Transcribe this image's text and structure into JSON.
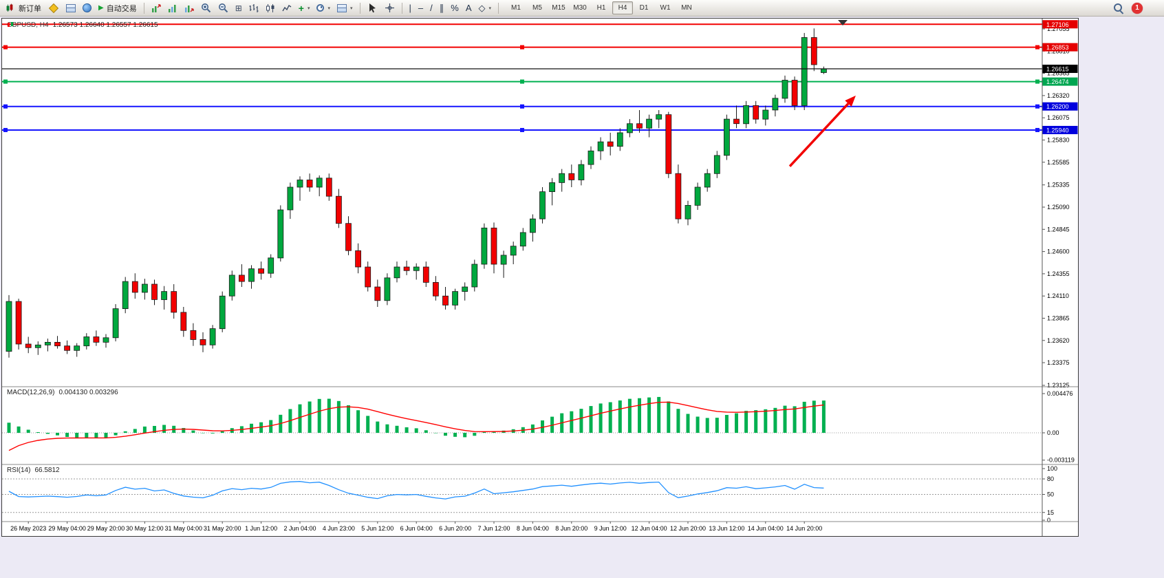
{
  "toolbar": {
    "new_order_label": "新订单",
    "auto_trading_label": "自动交易",
    "timeframes": [
      "M1",
      "M5",
      "M15",
      "M30",
      "H1",
      "H4",
      "D1",
      "W1",
      "MN"
    ],
    "active_timeframe": "H4",
    "notification_count": "1",
    "icons": [
      "new-order",
      "metaeditor",
      "market-watch",
      "data-window",
      "auto-trading-play",
      "new-chart",
      "chart-profiles",
      "chart-refresh",
      "zoom-in",
      "zoom-out",
      "tile-windows",
      "bar-chart",
      "candlestick-chart",
      "line-chart",
      "add-indicator",
      "periods-clock",
      "templates",
      "cursor",
      "crosshair",
      "vertical-line",
      "horizontal-line",
      "trendline",
      "equidistant-channel",
      "fibonacci",
      "text",
      "shapes",
      "search",
      "notification"
    ]
  },
  "chart": {
    "title_text": "GBPUSD, H4",
    "ohlc_text": "1.26573 1.26640 1.26557 1.26615"
  },
  "indicators": {
    "macd_label": "MACD(12,26,9)",
    "macd_values": "0.004130 0.003296",
    "rsi_label": "RSI(14)",
    "rsi_value": "66.5812"
  },
  "chart_data": {
    "type": "candlestick",
    "symbol": "GBPUSD",
    "period": "H4",
    "up_color": "#00a83e",
    "down_color": "#f20000",
    "outline_color": "#1a1a1a",
    "price_axis_top": 1.27055,
    "price_axis_bottom": 1.23125,
    "price_axis_labels": [
      "1.27055",
      "1.26810",
      "1.26565",
      "1.26320",
      "1.26075",
      "1.25830",
      "1.25585",
      "1.25335",
      "1.25090",
      "1.24845",
      "1.24600",
      "1.24355",
      "1.24110",
      "1.23865",
      "1.23620",
      "1.23375",
      "1.23125"
    ],
    "time_labels": [
      "26 May 2023",
      "29 May 04:00",
      "29 May 20:00",
      "30 May 12:00",
      "31 May 04:00",
      "31 May 20:00",
      "1 Jun 12:00",
      "2 Jun 04:00",
      "4 Jun 23:00",
      "5 Jun 12:00",
      "6 Jun 04:00",
      "6 Jun 20:00",
      "7 Jun 12:00",
      "8 Jun 04:00",
      "8 Jun 20:00",
      "9 Jun 12:00",
      "12 Jun 04:00",
      "12 Jun 20:00",
      "13 Jun 12:00",
      "14 Jun 04:00",
      "14 Jun 20:00"
    ],
    "first_label_bar": 2,
    "label_step": 4,
    "candles": [
      [
        1.235,
        1.2412,
        1.2343,
        1.2405
      ],
      [
        1.2405,
        1.2408,
        1.2352,
        1.2358
      ],
      [
        1.2358,
        1.2366,
        1.2348,
        1.2354
      ],
      [
        1.2354,
        1.2361,
        1.2346,
        1.2357
      ],
      [
        1.2357,
        1.2364,
        1.235,
        1.236
      ],
      [
        1.236,
        1.2367,
        1.2353,
        1.2356
      ],
      [
        1.2356,
        1.2362,
        1.2347,
        1.2351
      ],
      [
        1.2351,
        1.2359,
        1.2344,
        1.2356
      ],
      [
        1.2356,
        1.237,
        1.2352,
        1.2366
      ],
      [
        1.2366,
        1.2373,
        1.2356,
        1.236
      ],
      [
        1.236,
        1.2369,
        1.2354,
        1.2365
      ],
      [
        1.2365,
        1.2402,
        1.2361,
        1.2397
      ],
      [
        1.2397,
        1.2432,
        1.2392,
        1.2427
      ],
      [
        1.2427,
        1.2436,
        1.2408,
        1.2415
      ],
      [
        1.2415,
        1.243,
        1.2407,
        1.2424
      ],
      [
        1.2424,
        1.2429,
        1.2401,
        1.2407
      ],
      [
        1.2407,
        1.2422,
        1.2396,
        1.2416
      ],
      [
        1.2416,
        1.2424,
        1.2386,
        1.2393
      ],
      [
        1.2393,
        1.2399,
        1.2366,
        1.2373
      ],
      [
        1.2373,
        1.2381,
        1.2356,
        1.2363
      ],
      [
        1.2363,
        1.2371,
        1.2349,
        1.2357
      ],
      [
        1.2357,
        1.2379,
        1.2353,
        1.2375
      ],
      [
        1.2375,
        1.2416,
        1.2371,
        1.2411
      ],
      [
        1.2411,
        1.2439,
        1.2406,
        1.2434
      ],
      [
        1.2434,
        1.2446,
        1.2421,
        1.2427
      ],
      [
        1.2427,
        1.2445,
        1.2419,
        1.2441
      ],
      [
        1.2441,
        1.2449,
        1.2429,
        1.2436
      ],
      [
        1.2436,
        1.2457,
        1.2431,
        1.2453
      ],
      [
        1.2453,
        1.2511,
        1.2449,
        1.2506
      ],
      [
        1.2506,
        1.2536,
        1.2496,
        1.2531
      ],
      [
        1.2531,
        1.2543,
        1.2516,
        1.2539
      ],
      [
        1.2539,
        1.2546,
        1.2526,
        1.2531
      ],
      [
        1.2531,
        1.2544,
        1.2521,
        1.2541
      ],
      [
        1.2541,
        1.2546,
        1.2516,
        1.2521
      ],
      [
        1.2521,
        1.2529,
        1.2486,
        1.2491
      ],
      [
        1.2491,
        1.2499,
        1.2456,
        1.2461
      ],
      [
        1.2461,
        1.2469,
        1.2436,
        1.2443
      ],
      [
        1.2443,
        1.2449,
        1.2416,
        1.2421
      ],
      [
        1.2421,
        1.2429,
        1.2399,
        1.2406
      ],
      [
        1.2406,
        1.2436,
        1.2401,
        1.2431
      ],
      [
        1.2431,
        1.2449,
        1.2426,
        1.2443
      ],
      [
        1.2443,
        1.245,
        1.2434,
        1.2439
      ],
      [
        1.2439,
        1.2447,
        1.2429,
        1.2443
      ],
      [
        1.2443,
        1.2449,
        1.2421,
        1.2426
      ],
      [
        1.2426,
        1.2433,
        1.2406,
        1.2411
      ],
      [
        1.2411,
        1.2421,
        1.2396,
        1.2401
      ],
      [
        1.2401,
        1.2419,
        1.2396,
        1.2416
      ],
      [
        1.2416,
        1.2426,
        1.2406,
        1.2421
      ],
      [
        1.2421,
        1.2451,
        1.2416,
        1.2446
      ],
      [
        1.2446,
        1.2491,
        1.2441,
        1.2486
      ],
      [
        1.2486,
        1.2492,
        1.2436,
        1.2446
      ],
      [
        1.2446,
        1.2461,
        1.2431,
        1.2456
      ],
      [
        1.2456,
        1.2471,
        1.2446,
        1.2466
      ],
      [
        1.2466,
        1.2486,
        1.2461,
        1.2481
      ],
      [
        1.2481,
        1.2501,
        1.2471,
        1.2496
      ],
      [
        1.2496,
        1.2531,
        1.2491,
        1.2526
      ],
      [
        1.2526,
        1.2541,
        1.2511,
        1.2536
      ],
      [
        1.2536,
        1.2551,
        1.2526,
        1.2546
      ],
      [
        1.2546,
        1.2556,
        1.2531,
        1.2539
      ],
      [
        1.2539,
        1.2561,
        1.2533,
        1.2556
      ],
      [
        1.2556,
        1.2576,
        1.2551,
        1.2571
      ],
      [
        1.2571,
        1.2586,
        1.2561,
        1.2581
      ],
      [
        1.2581,
        1.2591,
        1.2566,
        1.2576
      ],
      [
        1.2576,
        1.2596,
        1.2571,
        1.2591
      ],
      [
        1.2591,
        1.2606,
        1.2586,
        1.2601
      ],
      [
        1.2601,
        1.2616,
        1.2591,
        1.2596
      ],
      [
        1.2596,
        1.2611,
        1.2586,
        1.2606
      ],
      [
        1.2606,
        1.2616,
        1.2596,
        1.2611
      ],
      [
        1.2611,
        1.2614,
        1.2541,
        1.2546
      ],
      [
        1.2546,
        1.2556,
        1.2491,
        1.2496
      ],
      [
        1.2496,
        1.2516,
        1.2489,
        1.2511
      ],
      [
        1.2511,
        1.2536,
        1.2506,
        1.2531
      ],
      [
        1.2531,
        1.2551,
        1.2526,
        1.2546
      ],
      [
        1.2546,
        1.2571,
        1.2541,
        1.2566
      ],
      [
        1.2566,
        1.2611,
        1.2561,
        1.2606
      ],
      [
        1.2606,
        1.2621,
        1.2596,
        1.2601
      ],
      [
        1.2601,
        1.2626,
        1.2596,
        1.2621
      ],
      [
        1.2621,
        1.2626,
        1.2601,
        1.2606
      ],
      [
        1.2606,
        1.2621,
        1.2599,
        1.2616
      ],
      [
        1.2616,
        1.2633,
        1.2609,
        1.2629
      ],
      [
        1.2629,
        1.2654,
        1.2624,
        1.2649
      ],
      [
        1.2649,
        1.2653,
        1.2616,
        1.2621
      ],
      [
        1.2621,
        1.2701,
        1.2616,
        1.2696
      ],
      [
        1.2696,
        1.2706,
        1.2659,
        1.2666
      ],
      [
        1.26573,
        1.2664,
        1.26557,
        1.26615
      ]
    ],
    "hlines": [
      {
        "price": 1.27106,
        "color": "#f20000",
        "width": 2,
        "handles": false,
        "name": "resistance-line-upper"
      },
      {
        "price": 1.26853,
        "color": "#f20000",
        "width": 2,
        "handles": true,
        "name": "resistance-line-lower"
      },
      {
        "price": 1.26474,
        "color": "#00b050",
        "width": 2,
        "handles": true,
        "name": "support-line-green"
      },
      {
        "price": 1.262,
        "color": "#1414ff",
        "width": 2,
        "handles": true,
        "name": "support-line-blue-upper"
      },
      {
        "price": 1.2594,
        "color": "#1414ff",
        "width": 2,
        "handles": true,
        "name": "support-line-blue-lower"
      }
    ],
    "bid_line": {
      "price": 1.26615,
      "color": "#111111"
    },
    "badges": [
      {
        "text": "1.27106",
        "price": 1.27106,
        "color": "#e50000"
      },
      {
        "text": "1.26853",
        "price": 1.26853,
        "color": "#e50000"
      },
      {
        "text": "1.26615",
        "price": 1.26615,
        "color": "#000000"
      },
      {
        "text": "1.26474",
        "price": 1.26474,
        "color": "#00a651"
      },
      {
        "text": "1.26200",
        "price": 1.262,
        "color": "#0000dd"
      },
      {
        "text": "1.25940",
        "price": 1.2594,
        "color": "#0000dd"
      }
    ],
    "arrow": {
      "from_bar": 80.5,
      "from_price": 1.2554,
      "to_bar": 87.3,
      "to_price": 1.2632,
      "color": "#f20000"
    },
    "macd": {
      "label": "MACD(12,26,9)",
      "current_main": 0.00413,
      "current_signal": 0.003296,
      "axis_labels": [
        "0.004476",
        "0.00",
        "-0.003119"
      ],
      "max": 0.004476,
      "min": -0.003119,
      "hist_color": "#00b050",
      "signal_color": "#ff0000"
    },
    "rsi": {
      "label": "RSI(14)",
      "current": 66.5812,
      "axis_labels": [
        {
          "v": 100,
          "t": "100"
        },
        {
          "v": 80,
          "t": "80"
        },
        {
          "v": 50,
          "t": "50"
        },
        {
          "v": 15,
          "t": "15"
        },
        {
          "v": 0,
          "t": "0"
        }
      ],
      "levels": [
        80,
        50,
        15
      ],
      "line_color": "#2090ff"
    }
  }
}
